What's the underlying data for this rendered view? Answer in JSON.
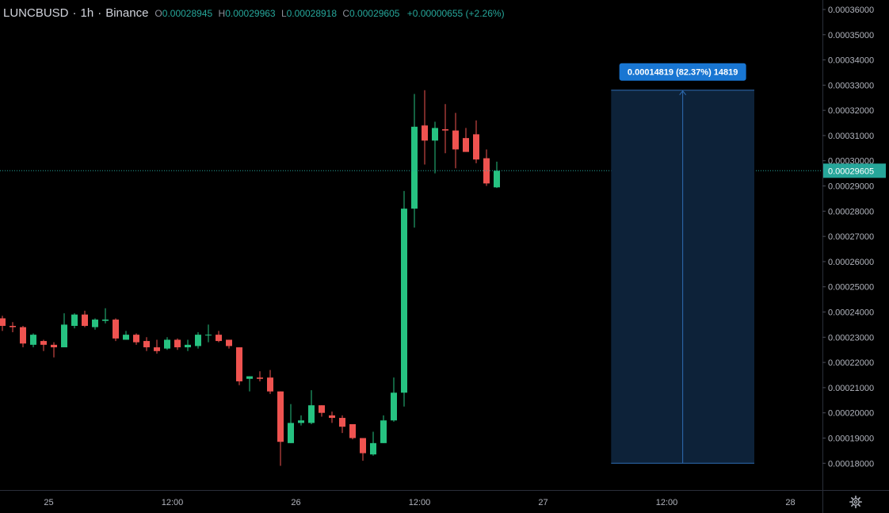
{
  "header": {
    "symbol": "LUNCBUSD",
    "sep1": "·",
    "interval": "1h",
    "sep2": "·",
    "exchange": "Binance",
    "o_label": "O",
    "o_value": "0.00028945",
    "h_label": "H",
    "h_value": "0.00029963",
    "l_label": "L",
    "l_value": "0.00028918",
    "c_label": "C",
    "c_value": "0.00029605",
    "change": "+0.00000655 (+2.26%)"
  },
  "colors": {
    "background": "#000000",
    "up": "#26c281",
    "down": "#ef5350",
    "axis_text": "#b2b5be",
    "price_line": "#26a69a",
    "measure_fill": "#0d2239",
    "measure_line": "#2f6db5",
    "measure_label_bg": "#1976d2"
  },
  "measure_tool": {
    "label": "0.00014819 (82.37%) 14819",
    "from_price": 0.00018,
    "to_price": 0.000328
  },
  "current_price_label": "0.00029605",
  "chart_data": {
    "type": "candlestick",
    "symbol": "LUNCBUSD",
    "interval": "1h",
    "exchange": "Binance",
    "ylim": [
      0.000176,
      0.000361
    ],
    "y_ticks": [
      "0.00018000",
      "0.00019000",
      "0.00020000",
      "0.00021000",
      "0.00022000",
      "0.00023000",
      "0.00024000",
      "0.00025000",
      "0.00026000",
      "0.00027000",
      "0.00028000",
      "0.00029000",
      "0.00030000",
      "0.00031000",
      "0.00032000",
      "0.00033000",
      "0.00034000",
      "0.00035000",
      "0.00036000"
    ],
    "x_ticks": [
      {
        "label": "25",
        "slot": 4.5
      },
      {
        "label": "12:00",
        "slot": 16.5
      },
      {
        "label": "26",
        "slot": 28.5
      },
      {
        "label": "12:00",
        "slot": 40.5
      },
      {
        "label": "27",
        "slot": 52.5
      },
      {
        "label": "12:00",
        "slot": 64.5
      },
      {
        "label": "28",
        "slot": 76.5
      }
    ],
    "last_price": 0.00029605,
    "candles": [
      [
        0.0002375,
        0.0002385,
        0.0002325,
        0.0002345
      ],
      [
        0.0002345,
        0.000236,
        0.000232,
        0.000234
      ],
      [
        0.000234,
        0.0002345,
        0.000226,
        0.0002275
      ],
      [
        0.000227,
        0.0002315,
        0.000226,
        0.000231
      ],
      [
        0.0002285,
        0.000229,
        0.0002245,
        0.000227
      ],
      [
        0.000227,
        0.000228,
        0.000222,
        0.000226
      ],
      [
        0.000226,
        0.0002395,
        0.000226,
        0.000235
      ],
      [
        0.0002345,
        0.0002395,
        0.0002335,
        0.000239
      ],
      [
        0.000239,
        0.0002405,
        0.000234,
        0.0002345
      ],
      [
        0.000234,
        0.0002375,
        0.000233,
        0.000237
      ],
      [
        0.0002365,
        0.0002415,
        0.0002355,
        0.000237
      ],
      [
        0.000237,
        0.0002375,
        0.0002285,
        0.0002295
      ],
      [
        0.000229,
        0.0002325,
        0.000229,
        0.000231
      ],
      [
        0.000231,
        0.0002315,
        0.000227,
        0.000228
      ],
      [
        0.0002285,
        0.00023,
        0.0002245,
        0.000226
      ],
      [
        0.000226,
        0.000229,
        0.0002235,
        0.0002245
      ],
      [
        0.0002255,
        0.00023,
        0.000225,
        0.000229
      ],
      [
        0.000229,
        0.0002295,
        0.000225,
        0.000226
      ],
      [
        0.000226,
        0.000229,
        0.0002245,
        0.000227
      ],
      [
        0.0002265,
        0.000232,
        0.0002255,
        0.000231
      ],
      [
        0.000231,
        0.000235,
        0.000228,
        0.000231
      ],
      [
        0.000231,
        0.0002325,
        0.000228,
        0.0002285
      ],
      [
        0.000229,
        0.000229,
        0.0002255,
        0.0002265
      ],
      [
        0.000226,
        0.000226,
        0.000211,
        0.0002125
      ],
      [
        0.0002135,
        0.0002145,
        0.0002085,
        0.0002145
      ],
      [
        0.000214,
        0.0002165,
        0.0002125,
        0.0002135
      ],
      [
        0.000214,
        0.000217,
        0.0002075,
        0.0002085
      ],
      [
        0.0002085,
        0.0002085,
        0.000179,
        0.0001885
      ],
      [
        0.000188,
        0.0002035,
        0.000188,
        0.000196
      ],
      [
        0.000196,
        0.000199,
        0.000195,
        0.000197
      ],
      [
        0.000196,
        0.000209,
        0.0001955,
        0.000203
      ],
      [
        0.000203,
        0.000203,
        0.0001985,
        0.0002
      ],
      [
        0.000199,
        0.0002005,
        0.000196,
        0.000198
      ],
      [
        0.000198,
        0.000199,
        0.000192,
        0.0001945
      ],
      [
        0.0001955,
        0.0001955,
        0.0001895,
        0.00019
      ],
      [
        0.00019,
        0.00019,
        0.000181,
        0.000184
      ],
      [
        0.0001835,
        0.0001925,
        0.000183,
        0.000188
      ],
      [
        0.000188,
        0.000199,
        0.000188,
        0.000197
      ],
      [
        0.000197,
        0.000214,
        0.0001965,
        0.000208
      ],
      [
        0.000208,
        0.000288,
        0.0002025,
        0.000281
      ],
      [
        0.000281,
        0.0003265,
        0.0002735,
        0.0003135
      ],
      [
        0.000314,
        0.000328,
        0.0002985,
        0.000308
      ],
      [
        0.000308,
        0.0003155,
        0.000295,
        0.000313
      ],
      [
        0.0003125,
        0.0003225,
        0.000303,
        0.000312
      ],
      [
        0.000312,
        0.000319,
        0.000297,
        0.0003045
      ],
      [
        0.000309,
        0.000313,
        0.000304,
        0.0003035
      ],
      [
        0.0003105,
        0.000316,
        0.000299,
        0.0003005
      ],
      [
        0.000301,
        0.0003045,
        0.00029,
        0.000291
      ],
      [
        0.00028945,
        0.00029963,
        0.00028918,
        0.00029605
      ]
    ]
  }
}
